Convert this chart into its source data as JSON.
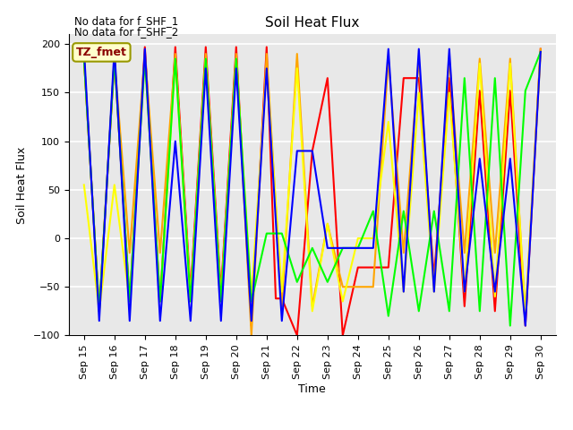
{
  "title": "Soil Heat Flux",
  "xlabel": "Time",
  "ylabel": "Soil Heat Flux",
  "ylim": [
    -100,
    210
  ],
  "yticks": [
    -100,
    -50,
    0,
    50,
    100,
    150,
    200
  ],
  "background_color": "#e8e8e8",
  "annotations": [
    "No data for f_SHF_1",
    "No data for f_SHF_2"
  ],
  "legend_label": "TZ_fmet",
  "series": {
    "SHF1": {
      "color": "red",
      "x": [
        15.0,
        15.5,
        16.0,
        16.5,
        17.0,
        17.5,
        18.0,
        18.5,
        19.0,
        19.5,
        20.0,
        20.5,
        21.0,
        21.3,
        21.5,
        22.0,
        22.5,
        23.0,
        23.5,
        24.0,
        24.5,
        25.0,
        25.5,
        26.0,
        26.5,
        27.0,
        27.5,
        28.0,
        28.5,
        29.0,
        29.5,
        30.0
      ],
      "y": [
        185,
        -75,
        185,
        -65,
        197,
        -65,
        197,
        -55,
        197,
        -55,
        197,
        -90,
        197,
        -62,
        -62,
        -100,
        90,
        165,
        -100,
        -30,
        -30,
        -30,
        165,
        165,
        -40,
        165,
        -70,
        152,
        -75,
        152,
        -90,
        195
      ]
    },
    "SHF2": {
      "color": "orange",
      "x": [
        15.0,
        15.5,
        16.0,
        16.5,
        17.0,
        17.5,
        18.0,
        18.5,
        19.0,
        19.5,
        20.0,
        20.5,
        21.0,
        21.5,
        22.0,
        22.5,
        23.0,
        23.5,
        24.0,
        24.5,
        25.0,
        25.5,
        26.0,
        26.5,
        27.0,
        27.5,
        28.0,
        28.5,
        29.0,
        29.5,
        30.0
      ],
      "y": [
        185,
        -75,
        185,
        -15,
        190,
        -15,
        190,
        -60,
        190,
        -60,
        190,
        -100,
        190,
        -70,
        190,
        -70,
        15,
        -50,
        -50,
        -50,
        185,
        -15,
        185,
        -50,
        185,
        -15,
        185,
        -15,
        185,
        -80,
        195
      ]
    },
    "SHF3": {
      "color": "yellow",
      "x": [
        15.0,
        15.5,
        16.0,
        16.5,
        17.0,
        17.5,
        18.0,
        18.5,
        19.0,
        19.5,
        20.0,
        20.5,
        21.0,
        21.5,
        22.0,
        22.5,
        23.0,
        23.5,
        24.0,
        24.5,
        25.0,
        25.5,
        26.0,
        26.5,
        27.0,
        27.5,
        28.0,
        28.5,
        29.0,
        29.5,
        30.0
      ],
      "y": [
        55,
        -75,
        55,
        -65,
        185,
        -65,
        185,
        -65,
        185,
        -65,
        185,
        -60,
        175,
        -55,
        175,
        -75,
        15,
        -65,
        0,
        0,
        120,
        -55,
        150,
        -55,
        150,
        -55,
        180,
        -60,
        180,
        -80,
        192
      ]
    },
    "SHF4": {
      "color": "lime",
      "x": [
        15.0,
        15.5,
        16.0,
        16.5,
        17.0,
        17.5,
        18.0,
        18.5,
        19.0,
        19.5,
        20.0,
        20.5,
        21.0,
        21.3,
        21.5,
        22.0,
        22.5,
        23.0,
        23.5,
        24.0,
        24.5,
        25.0,
        25.5,
        26.0,
        26.5,
        27.0,
        27.5,
        28.0,
        28.5,
        29.0,
        29.5,
        30.0
      ],
      "y": [
        185,
        -75,
        185,
        -65,
        185,
        -65,
        185,
        -65,
        185,
        -65,
        185,
        -65,
        5,
        5,
        5,
        -45,
        -10,
        -45,
        -10,
        -10,
        28,
        -80,
        28,
        -75,
        28,
        -75,
        165,
        -75,
        165,
        -90,
        152,
        192
      ]
    },
    "SHF5": {
      "color": "blue",
      "x": [
        15.0,
        15.5,
        16.0,
        16.5,
        17.0,
        17.5,
        18.0,
        18.5,
        19.0,
        19.5,
        20.0,
        20.5,
        21.0,
        21.5,
        22.0,
        22.5,
        23.0,
        23.3,
        23.5,
        24.5,
        25.0,
        25.5,
        26.0,
        26.5,
        27.0,
        27.5,
        28.0,
        28.5,
        29.0,
        29.5,
        30.0
      ],
      "y": [
        195,
        -85,
        195,
        -85,
        195,
        -85,
        100,
        -85,
        175,
        -85,
        175,
        -85,
        175,
        -85,
        90,
        90,
        -10,
        -10,
        -10,
        -10,
        195,
        -55,
        195,
        -55,
        195,
        -55,
        82,
        -55,
        82,
        -90,
        192
      ]
    }
  },
  "xticks": [
    15,
    16,
    17,
    18,
    19,
    20,
    21,
    22,
    23,
    24,
    25,
    26,
    27,
    28,
    29,
    30
  ],
  "xtick_labels": [
    "Sep 15",
    "Sep 16",
    "Sep 17",
    "Sep 18",
    "Sep 19",
    "Sep 20",
    "Sep 21",
    "Sep 22",
    "Sep 23",
    "Sep 24",
    "Sep 25",
    "Sep 26",
    "Sep 27",
    "Sep 28",
    "Sep 29",
    "Sep 30"
  ]
}
